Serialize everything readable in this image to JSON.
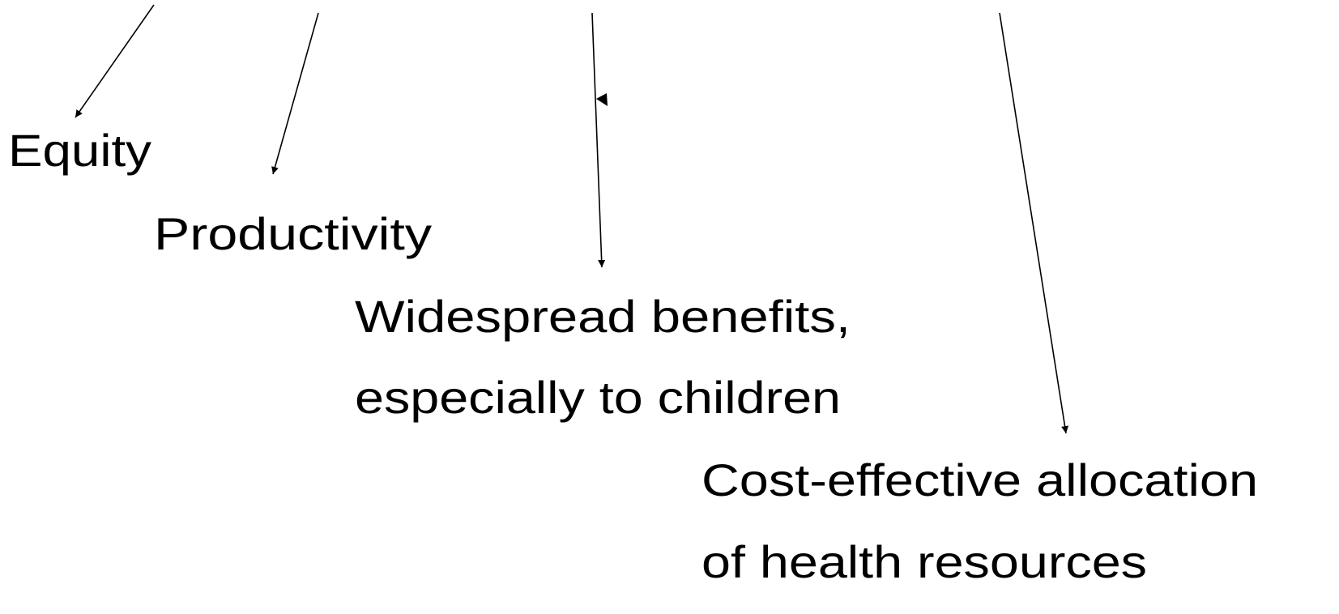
{
  "nodes": [
    {
      "lines": [
        "Equity"
      ]
    },
    {
      "lines": [
        "Productivity"
      ]
    },
    {
      "lines": [
        "Widespread benefits,",
        "especially to children"
      ]
    },
    {
      "lines": [
        "Cost-effective allocation",
        "of health resources"
      ]
    }
  ]
}
